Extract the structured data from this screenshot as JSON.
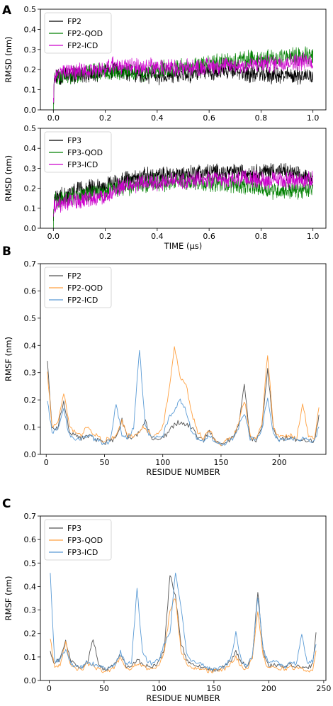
{
  "colors": {
    "FP2": "#000000",
    "FP2-QOD": "#008000",
    "FP2-ICD": "#cc00cc",
    "FP3": "#000000",
    "FP3-QOD": "#008000",
    "FP3-ICD": "#cc00cc",
    "rmsf_black": "#555555",
    "rmsf_orange": "#ffa040",
    "rmsf_blue": "#5b9bd5"
  },
  "chart_data": [
    {
      "panel": "A",
      "type": "line",
      "xlabel": "",
      "ylabel": "RMSD (nm)",
      "xlim": [
        -0.05,
        1.05
      ],
      "ylim": [
        0.0,
        0.5
      ],
      "xticks": [
        "0.0",
        "0.2",
        "0.4",
        "0.6",
        "0.8",
        "1.0"
      ],
      "yticks": [
        "0.0",
        "0.1",
        "0.2",
        "0.3",
        "0.4",
        "0.5"
      ],
      "legend": "top-left",
      "series": [
        {
          "name": "FP2",
          "color": "#000000",
          "x": [
            0,
            0.05,
            0.1,
            0.15,
            0.2,
            0.25,
            0.3,
            0.35,
            0.4,
            0.45,
            0.5,
            0.55,
            0.6,
            0.65,
            0.7,
            0.75,
            0.8,
            0.85,
            0.9,
            0.95,
            1.0
          ],
          "values": [
            0.16,
            0.17,
            0.17,
            0.18,
            0.19,
            0.2,
            0.18,
            0.17,
            0.17,
            0.17,
            0.18,
            0.18,
            0.19,
            0.19,
            0.19,
            0.18,
            0.18,
            0.17,
            0.17,
            0.17,
            0.17
          ]
        },
        {
          "name": "FP2-QOD",
          "color": "#008000",
          "x": [
            0,
            0.05,
            0.1,
            0.15,
            0.2,
            0.25,
            0.3,
            0.35,
            0.4,
            0.45,
            0.5,
            0.55,
            0.6,
            0.65,
            0.7,
            0.75,
            0.8,
            0.85,
            0.9,
            0.95,
            1.0
          ],
          "values": [
            0.15,
            0.17,
            0.18,
            0.19,
            0.19,
            0.19,
            0.19,
            0.18,
            0.2,
            0.2,
            0.21,
            0.22,
            0.23,
            0.24,
            0.24,
            0.25,
            0.25,
            0.26,
            0.26,
            0.27,
            0.27
          ]
        },
        {
          "name": "FP2-ICD",
          "color": "#cc00cc",
          "x": [
            0,
            0.05,
            0.1,
            0.15,
            0.2,
            0.25,
            0.3,
            0.35,
            0.4,
            0.45,
            0.5,
            0.55,
            0.6,
            0.65,
            0.7,
            0.75,
            0.8,
            0.85,
            0.9,
            0.95,
            1.0
          ],
          "values": [
            0.18,
            0.19,
            0.19,
            0.2,
            0.21,
            0.22,
            0.22,
            0.21,
            0.21,
            0.21,
            0.21,
            0.21,
            0.22,
            0.22,
            0.22,
            0.22,
            0.23,
            0.23,
            0.24,
            0.24,
            0.24
          ]
        }
      ]
    },
    {
      "panel": "",
      "type": "line",
      "xlabel": "TIME (μs)",
      "ylabel": "RMSD (nm)",
      "xlim": [
        -0.05,
        1.05
      ],
      "ylim": [
        0.0,
        0.5
      ],
      "xticks": [
        "0.0",
        "0.2",
        "0.4",
        "0.6",
        "0.8",
        "1.0"
      ],
      "yticks": [
        "0.0",
        "0.1",
        "0.2",
        "0.3",
        "0.4",
        "0.5"
      ],
      "legend": "top-left",
      "series": [
        {
          "name": "FP3",
          "color": "#000000",
          "x": [
            0,
            0.05,
            0.1,
            0.15,
            0.2,
            0.25,
            0.3,
            0.35,
            0.4,
            0.45,
            0.5,
            0.55,
            0.6,
            0.65,
            0.7,
            0.75,
            0.8,
            0.85,
            0.9,
            0.95,
            1.0
          ],
          "values": [
            0.15,
            0.17,
            0.19,
            0.2,
            0.21,
            0.23,
            0.25,
            0.26,
            0.26,
            0.27,
            0.27,
            0.28,
            0.28,
            0.28,
            0.28,
            0.28,
            0.28,
            0.29,
            0.28,
            0.26,
            0.25
          ]
        },
        {
          "name": "FP3-QOD",
          "color": "#008000",
          "x": [
            0,
            0.05,
            0.1,
            0.15,
            0.2,
            0.25,
            0.3,
            0.35,
            0.4,
            0.45,
            0.5,
            0.55,
            0.6,
            0.65,
            0.7,
            0.75,
            0.8,
            0.85,
            0.9,
            0.95,
            1.0
          ],
          "values": [
            0.13,
            0.15,
            0.16,
            0.17,
            0.18,
            0.2,
            0.21,
            0.22,
            0.23,
            0.23,
            0.23,
            0.23,
            0.23,
            0.22,
            0.22,
            0.21,
            0.2,
            0.19,
            0.19,
            0.19,
            0.19
          ]
        },
        {
          "name": "FP3-ICD",
          "color": "#cc00cc",
          "x": [
            0,
            0.05,
            0.1,
            0.15,
            0.2,
            0.25,
            0.3,
            0.35,
            0.4,
            0.45,
            0.5,
            0.55,
            0.6,
            0.65,
            0.7,
            0.75,
            0.8,
            0.85,
            0.9,
            0.95,
            1.0
          ],
          "values": [
            0.11,
            0.13,
            0.14,
            0.15,
            0.16,
            0.2,
            0.22,
            0.23,
            0.23,
            0.24,
            0.24,
            0.24,
            0.24,
            0.24,
            0.24,
            0.25,
            0.24,
            0.24,
            0.24,
            0.24,
            0.24
          ]
        }
      ]
    },
    {
      "panel": "B",
      "type": "line",
      "xlabel": "RESIDUE NUMBER",
      "ylabel": "RMSF (nm)",
      "xlim": [
        -5,
        240
      ],
      "ylim": [
        0.0,
        0.7
      ],
      "xticks": [
        "0",
        "50",
        "100",
        "150",
        "200"
      ],
      "yticks": [
        "0.0",
        "0.1",
        "0.2",
        "0.3",
        "0.4",
        "0.5",
        "0.6",
        "0.7"
      ],
      "legend": "top-left",
      "series": [
        {
          "name": "FP2",
          "color": "#555555",
          "x": [
            1,
            5,
            10,
            15,
            20,
            25,
            30,
            35,
            40,
            45,
            50,
            55,
            60,
            65,
            70,
            75,
            80,
            85,
            90,
            95,
            100,
            105,
            110,
            115,
            120,
            125,
            130,
            135,
            140,
            145,
            150,
            155,
            160,
            165,
            170,
            175,
            180,
            185,
            190,
            195,
            200,
            205,
            210,
            215,
            220,
            225,
            230,
            234
          ],
          "values": [
            0.35,
            0.09,
            0.1,
            0.2,
            0.08,
            0.07,
            0.06,
            0.07,
            0.06,
            0.05,
            0.04,
            0.05,
            0.06,
            0.13,
            0.06,
            0.06,
            0.08,
            0.12,
            0.06,
            0.05,
            0.06,
            0.08,
            0.11,
            0.12,
            0.11,
            0.1,
            0.06,
            0.05,
            0.09,
            0.05,
            0.04,
            0.05,
            0.06,
            0.1,
            0.26,
            0.06,
            0.05,
            0.1,
            0.31,
            0.09,
            0.05,
            0.06,
            0.06,
            0.05,
            0.06,
            0.05,
            0.05,
            0.14
          ]
        },
        {
          "name": "FP2-QOD",
          "color": "#ffa040",
          "x": [
            1,
            5,
            10,
            15,
            20,
            25,
            30,
            35,
            40,
            45,
            50,
            55,
            60,
            65,
            70,
            75,
            80,
            85,
            90,
            95,
            100,
            105,
            110,
            115,
            120,
            125,
            130,
            135,
            140,
            145,
            150,
            155,
            160,
            165,
            170,
            175,
            180,
            185,
            190,
            195,
            200,
            205,
            210,
            215,
            220,
            225,
            230,
            234
          ],
          "values": [
            0.3,
            0.1,
            0.12,
            0.23,
            0.1,
            0.08,
            0.07,
            0.1,
            0.08,
            0.06,
            0.05,
            0.06,
            0.07,
            0.12,
            0.07,
            0.07,
            0.09,
            0.1,
            0.07,
            0.07,
            0.1,
            0.22,
            0.4,
            0.28,
            0.26,
            0.15,
            0.08,
            0.06,
            0.09,
            0.05,
            0.04,
            0.05,
            0.06,
            0.11,
            0.2,
            0.07,
            0.06,
            0.1,
            0.37,
            0.1,
            0.06,
            0.07,
            0.07,
            0.06,
            0.19,
            0.07,
            0.06,
            0.17
          ]
        },
        {
          "name": "FP2-ICD",
          "color": "#5b9bd5",
          "x": [
            1,
            5,
            10,
            15,
            20,
            25,
            30,
            35,
            40,
            45,
            50,
            55,
            60,
            65,
            70,
            75,
            80,
            85,
            90,
            95,
            100,
            105,
            110,
            115,
            120,
            125,
            130,
            135,
            140,
            145,
            150,
            155,
            160,
            165,
            170,
            175,
            180,
            185,
            190,
            195,
            200,
            205,
            210,
            215,
            220,
            225,
            230,
            234
          ],
          "values": [
            0.2,
            0.08,
            0.09,
            0.16,
            0.07,
            0.06,
            0.06,
            0.07,
            0.06,
            0.05,
            0.04,
            0.05,
            0.19,
            0.07,
            0.06,
            0.1,
            0.39,
            0.1,
            0.06,
            0.06,
            0.07,
            0.13,
            0.16,
            0.2,
            0.16,
            0.08,
            0.06,
            0.05,
            0.07,
            0.05,
            0.04,
            0.04,
            0.06,
            0.1,
            0.15,
            0.06,
            0.05,
            0.09,
            0.21,
            0.08,
            0.05,
            0.06,
            0.06,
            0.05,
            0.06,
            0.05,
            0.05,
            0.1
          ]
        }
      ]
    },
    {
      "panel": "C",
      "type": "line",
      "xlabel": "RESIDUE NUMBER",
      "ylabel": "RMSF (nm)",
      "xlim": [
        -8,
        252
      ],
      "ylim": [
        0.0,
        0.7
      ],
      "xticks": [
        "0",
        "50",
        "100",
        "150",
        "200",
        "250"
      ],
      "yticks": [
        "0.0",
        "0.1",
        "0.2",
        "0.3",
        "0.4",
        "0.5",
        "0.6",
        "0.7"
      ],
      "legend": "top-left",
      "series": [
        {
          "name": "FP3",
          "color": "#555555",
          "x": [
            1,
            5,
            10,
            15,
            20,
            25,
            30,
            35,
            40,
            45,
            50,
            55,
            60,
            65,
            70,
            75,
            80,
            85,
            90,
            95,
            100,
            105,
            110,
            115,
            120,
            125,
            130,
            135,
            140,
            145,
            150,
            155,
            160,
            165,
            170,
            175,
            180,
            185,
            190,
            195,
            200,
            205,
            210,
            215,
            220,
            225,
            230,
            235,
            240,
            243
          ],
          "values": [
            0.12,
            0.07,
            0.09,
            0.17,
            0.08,
            0.06,
            0.06,
            0.08,
            0.18,
            0.06,
            0.05,
            0.05,
            0.07,
            0.11,
            0.06,
            0.06,
            0.09,
            0.07,
            0.06,
            0.06,
            0.08,
            0.14,
            0.45,
            0.36,
            0.16,
            0.09,
            0.07,
            0.06,
            0.06,
            0.05,
            0.04,
            0.05,
            0.06,
            0.08,
            0.12,
            0.08,
            0.06,
            0.1,
            0.38,
            0.12,
            0.06,
            0.07,
            0.06,
            0.06,
            0.07,
            0.06,
            0.06,
            0.05,
            0.07,
            0.21
          ]
        },
        {
          "name": "FP3-QOD",
          "color": "#ffa040",
          "x": [
            1,
            5,
            10,
            15,
            20,
            25,
            30,
            35,
            40,
            45,
            50,
            55,
            60,
            65,
            70,
            75,
            80,
            85,
            90,
            95,
            100,
            105,
            110,
            115,
            120,
            125,
            130,
            135,
            140,
            145,
            150,
            155,
            160,
            165,
            170,
            175,
            180,
            185,
            190,
            195,
            200,
            205,
            210,
            215,
            220,
            225,
            230,
            235,
            240,
            243
          ],
          "values": [
            0.18,
            0.05,
            0.07,
            0.16,
            0.06,
            0.05,
            0.05,
            0.07,
            0.06,
            0.05,
            0.04,
            0.04,
            0.06,
            0.1,
            0.05,
            0.05,
            0.07,
            0.06,
            0.05,
            0.05,
            0.07,
            0.12,
            0.3,
            0.35,
            0.13,
            0.07,
            0.06,
            0.05,
            0.05,
            0.04,
            0.04,
            0.04,
            0.05,
            0.07,
            0.1,
            0.06,
            0.05,
            0.09,
            0.3,
            0.1,
            0.05,
            0.06,
            0.05,
            0.05,
            0.06,
            0.05,
            0.05,
            0.04,
            0.05,
            0.12
          ]
        },
        {
          "name": "FP3-ICD",
          "color": "#5b9bd5",
          "x": [
            1,
            5,
            10,
            15,
            20,
            25,
            30,
            35,
            40,
            45,
            50,
            55,
            60,
            65,
            70,
            75,
            80,
            85,
            90,
            95,
            100,
            105,
            110,
            115,
            120,
            125,
            130,
            135,
            140,
            145,
            150,
            155,
            160,
            165,
            170,
            175,
            180,
            185,
            190,
            195,
            200,
            205,
            210,
            215,
            220,
            225,
            230,
            235,
            240,
            243
          ],
          "values": [
            0.45,
            0.08,
            0.09,
            0.13,
            0.07,
            0.06,
            0.06,
            0.08,
            0.07,
            0.06,
            0.05,
            0.05,
            0.07,
            0.12,
            0.07,
            0.08,
            0.39,
            0.12,
            0.08,
            0.07,
            0.09,
            0.16,
            0.2,
            0.46,
            0.32,
            0.12,
            0.08,
            0.07,
            0.07,
            0.05,
            0.05,
            0.05,
            0.06,
            0.09,
            0.2,
            0.08,
            0.06,
            0.11,
            0.36,
            0.13,
            0.07,
            0.08,
            0.07,
            0.06,
            0.08,
            0.07,
            0.19,
            0.08,
            0.08,
            0.15
          ]
        }
      ]
    }
  ]
}
